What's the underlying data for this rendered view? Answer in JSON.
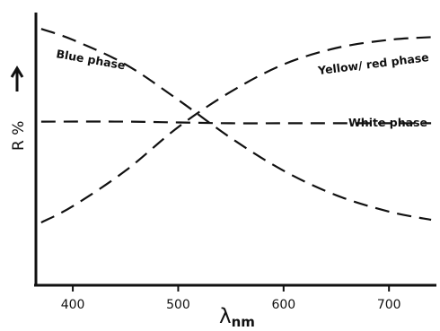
{
  "chart_data": {
    "type": "line",
    "xlabel_symbol": "λ",
    "xlabel_subscript": "nm",
    "ylabel": "R %",
    "xlim": [
      365,
      745
    ],
    "ylim": [
      0,
      100
    ],
    "xticks": [
      400,
      500,
      600,
      700
    ],
    "grid": false,
    "series": [
      {
        "name": "Blue phase",
        "x": [
          370,
          400,
          450,
          500,
          550,
          600,
          650,
          700,
          740
        ],
        "y": [
          94,
          90,
          81,
          68,
          54,
          42,
          33,
          27,
          24
        ]
      },
      {
        "name": "Yellow/ red phase",
        "x": [
          370,
          400,
          450,
          500,
          550,
          600,
          650,
          700,
          740
        ],
        "y": [
          23,
          29,
          42,
          58,
          71,
          81,
          87,
          90,
          91
        ]
      },
      {
        "name": "White phase",
        "x": [
          370,
          450,
          500,
          550,
          600,
          650,
          700,
          740
        ],
        "y": [
          60,
          60,
          59.7,
          59.4,
          59.4,
          59.4,
          59.4,
          59.4
        ]
      }
    ]
  }
}
